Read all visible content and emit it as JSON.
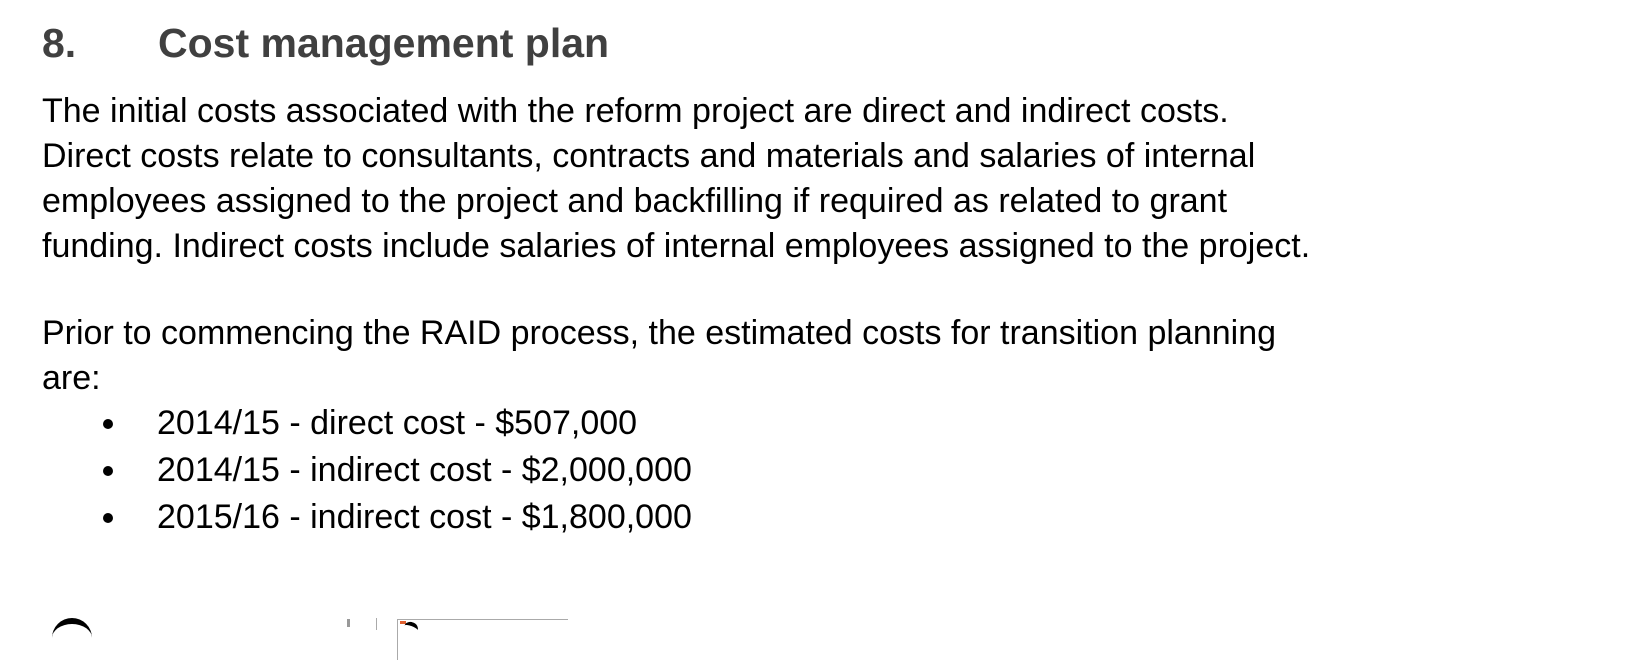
{
  "heading": {
    "number": "8.",
    "title": "Cost management plan"
  },
  "paragraph1": [
    "The initial costs associated with the reform project are direct and indirect costs.",
    "Direct costs relate to consultants, contracts and materials and salaries of internal",
    "employees assigned to the project and backfilling if required as related to grant",
    "funding.  Indirect costs include salaries of internal employees assigned to the project."
  ],
  "paragraph2": [
    "Prior to commencing the RAID process, the estimated costs for transition planning",
    "are:"
  ],
  "bullets": [
    "2014/15 - direct cost - $507,000",
    "2014/15 - indirect cost - $2,000,000",
    "2015/16 - indirect cost - $1,800,000"
  ]
}
